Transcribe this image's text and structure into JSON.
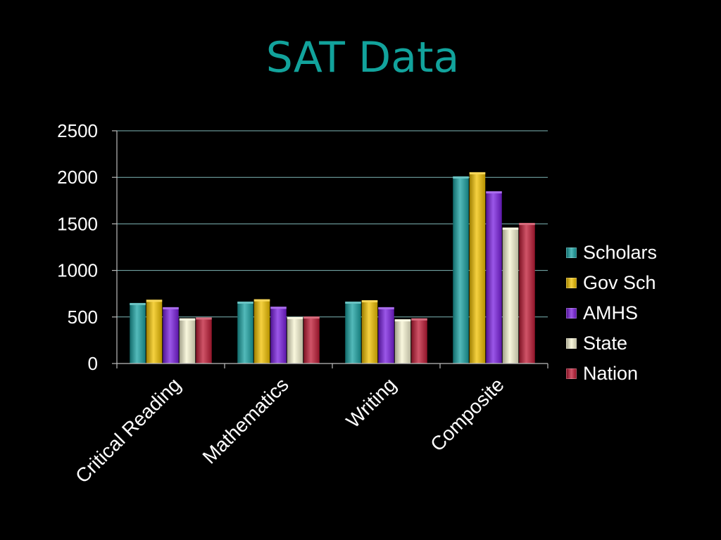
{
  "slide": {
    "title": "SAT Data"
  },
  "chart_data": {
    "type": "bar",
    "title": "",
    "xlabel": "",
    "ylabel": "",
    "categories": [
      "Critical Reading",
      "Mathematics",
      "Writing",
      "Composite"
    ],
    "ylim": [
      0,
      2500
    ],
    "yticks": [
      "0",
      "500",
      "1000",
      "1500",
      "2000",
      "2500"
    ],
    "grid": true,
    "legend_position": "right",
    "series": [
      {
        "name": "Scholars",
        "color": "#1aa3a3",
        "values": [
          650,
          665,
          665,
          2010
        ]
      },
      {
        "name": "Gov Sch",
        "color": "#f2c200",
        "values": [
          685,
          690,
          680,
          2055
        ]
      },
      {
        "name": "AMHS",
        "color": "#7a1fe0",
        "values": [
          605,
          610,
          605,
          1850
        ]
      },
      {
        "name": "State",
        "color": "#f7f4d2",
        "values": [
          485,
          500,
          475,
          1460
        ]
      },
      {
        "name": "Nation",
        "color": "#c01b36",
        "values": [
          495,
          505,
          485,
          1510
        ]
      }
    ]
  }
}
